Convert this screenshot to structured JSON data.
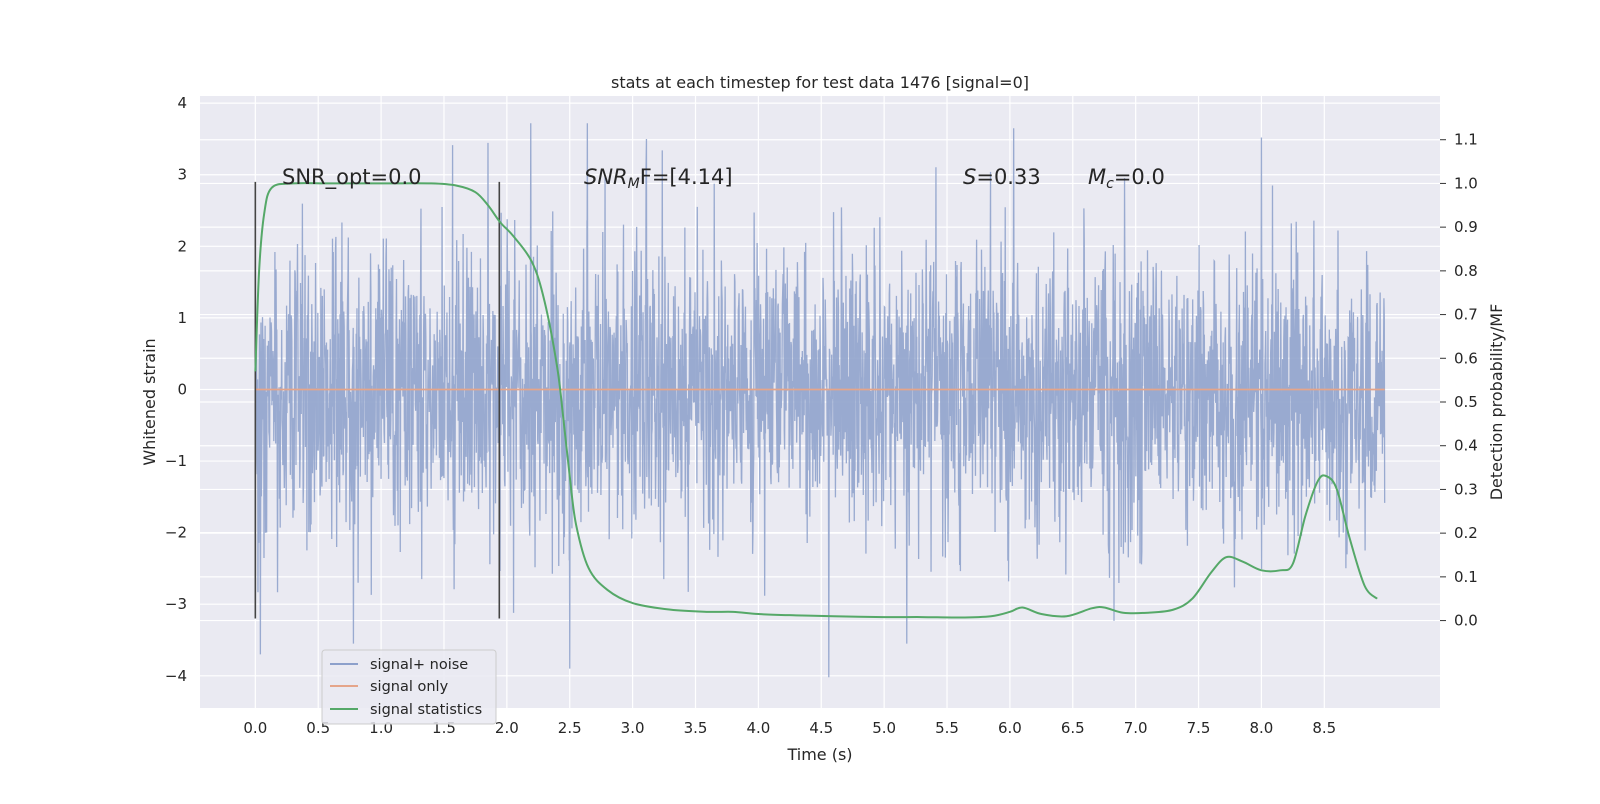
{
  "figure": {
    "title": "stats at each timestep for test data 1476 [signal=0]",
    "xlabel": "Time (s)",
    "ylabel_left": "Whitened strain",
    "ylabel_right": "Detection probability/MF",
    "annotations": {
      "snr_opt": "SNR_opt=0.0",
      "snr_mf_name": "SNR",
      "snr_mf_sub": "M",
      "snr_mf_rest": "F=[4.14]",
      "s_name": "S",
      "s_rest": "=0.33",
      "mc_name": "M",
      "mc_sub": "c",
      "mc_rest": "=0.0"
    },
    "legend": [
      {
        "label": "signal+ noise",
        "color": "#8da0cb"
      },
      {
        "label": "signal only",
        "color": "#e5a58a"
      },
      {
        "label": "signal statistics",
        "color": "#55a868"
      }
    ],
    "x_ticks": [
      "0.0",
      "0.5",
      "1.0",
      "1.5",
      "2.0",
      "2.5",
      "3.0",
      "3.5",
      "4.0",
      "4.5",
      "5.0",
      "5.5",
      "6.0",
      "6.5",
      "7.0",
      "7.5",
      "8.0",
      "8.5"
    ],
    "y_ticks_left": [
      "4",
      "3",
      "2",
      "1",
      "0",
      "−1",
      "−2",
      "−3",
      "−4"
    ],
    "y_ticks_right": [
      "1.1",
      "1.0",
      "0.9",
      "0.8",
      "0.7",
      "0.6",
      "0.5",
      "0.4",
      "0.3",
      "0.2",
      "0.1",
      "0.0"
    ]
  },
  "chart_data": {
    "type": "line",
    "xlim": [
      -0.44,
      9.42
    ],
    "ylim_left": [
      -4.45,
      4.1
    ],
    "ylim_right": [
      -0.2,
      1.2
    ],
    "grid": true,
    "legend_position": "lower-left",
    "vertical_markers": [
      0.0,
      1.94
    ],
    "colors": {
      "noise": "#8da0cb",
      "signal": "#e5a58a",
      "stats": "#55a868",
      "marker": "#444444"
    },
    "series": [
      {
        "name": "signal+ noise",
        "axis": "left",
        "x_range": [
          0.0,
          8.98
        ],
        "typical_amplitude": 2.1,
        "notable_points": [
          {
            "x": 0.04,
            "y": -3.7
          },
          {
            "x": 0.78,
            "y": -3.55
          },
          {
            "x": 2.19,
            "y": 3.72
          },
          {
            "x": 2.64,
            "y": 3.72
          },
          {
            "x": 2.5,
            "y": -3.9
          },
          {
            "x": 4.56,
            "y": -4.02
          },
          {
            "x": 5.18,
            "y": -3.55
          },
          {
            "x": 6.03,
            "y": 3.65
          },
          {
            "x": 8.0,
            "y": 3.52
          }
        ]
      },
      {
        "name": "signal only",
        "axis": "left",
        "x": [
          0.0,
          8.98
        ],
        "y": [
          0.0,
          0.0
        ]
      },
      {
        "name": "signal statistics",
        "axis": "right",
        "x": [
          0.0,
          0.03,
          0.07,
          0.13,
          0.3,
          0.6,
          1.0,
          1.4,
          1.6,
          1.75,
          1.85,
          1.95,
          2.05,
          2.2,
          2.3,
          2.4,
          2.45,
          2.5,
          2.55,
          2.65,
          2.8,
          3.0,
          3.3,
          3.6,
          3.8,
          4.0,
          4.3,
          4.6,
          5.0,
          5.3,
          5.6,
          5.85,
          6.0,
          6.1,
          6.25,
          6.45,
          6.65,
          6.75,
          6.9,
          7.1,
          7.3,
          7.45,
          7.6,
          7.72,
          7.85,
          8.0,
          8.15,
          8.25,
          8.35,
          8.45,
          8.52,
          8.6,
          8.7,
          8.82,
          8.92
        ],
        "y": [
          0.57,
          0.8,
          0.93,
          0.99,
          1.0,
          1.0,
          1.0,
          1.0,
          0.995,
          0.98,
          0.95,
          0.91,
          0.88,
          0.82,
          0.73,
          0.58,
          0.46,
          0.33,
          0.22,
          0.12,
          0.07,
          0.04,
          0.025,
          0.02,
          0.02,
          0.015,
          0.012,
          0.01,
          0.008,
          0.008,
          0.007,
          0.01,
          0.02,
          0.03,
          0.015,
          0.01,
          0.028,
          0.03,
          0.018,
          0.018,
          0.025,
          0.05,
          0.11,
          0.145,
          0.135,
          0.115,
          0.115,
          0.13,
          0.24,
          0.32,
          0.33,
          0.3,
          0.19,
          0.08,
          0.05
        ]
      }
    ]
  }
}
